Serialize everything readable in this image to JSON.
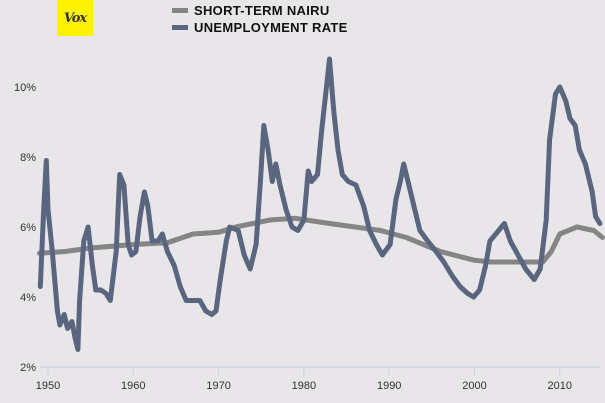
{
  "logo": "Vox",
  "chart_data": {
    "type": "line",
    "title": "",
    "xlabel": "",
    "ylabel": "",
    "xlim": [
      1948.9,
      2015
    ],
    "ylim": [
      2,
      11
    ],
    "x_ticks": [
      "1950",
      "1960",
      "1970",
      "1980",
      "1990",
      "2000",
      "2010"
    ],
    "y_ticks": [
      "2%",
      "4%",
      "6%",
      "8%",
      "10%"
    ],
    "grid": false,
    "legend": "top-center",
    "series": [
      {
        "name": "SHORT-TERM NAIRU",
        "color": "#858585",
        "x": [
          1949,
          1952,
          1955,
          1960,
          1964,
          1967,
          1970,
          1972,
          1976,
          1979,
          1983,
          1989,
          1992,
          1996,
          2000,
          2002,
          2008,
          2009,
          2010,
          2012,
          2014,
          2015
        ],
        "y": [
          5.25,
          5.3,
          5.4,
          5.5,
          5.55,
          5.8,
          5.85,
          6.0,
          6.2,
          6.25,
          6.1,
          5.9,
          5.7,
          5.3,
          5.05,
          5.0,
          5.0,
          5.3,
          5.8,
          6.0,
          5.9,
          5.7
        ]
      },
      {
        "name": "UNEMPLOYMENT RATE",
        "color": "#5a6680",
        "x": [
          1949.1,
          1949.5,
          1949.8,
          1950,
          1950.5,
          1951.1,
          1951.4,
          1951.9,
          1952.3,
          1952.8,
          1953.2,
          1953.5,
          1953.7,
          1954.2,
          1954.7,
          1955.2,
          1955.6,
          1956.2,
          1956.8,
          1957.3,
          1958,
          1958.4,
          1958.9,
          1959.4,
          1959.8,
          1960.3,
          1960.8,
          1961.3,
          1961.7,
          1962.2,
          1962.9,
          1963.4,
          1964,
          1964.8,
          1965.5,
          1966.2,
          1967.1,
          1967.8,
          1968.5,
          1969.2,
          1969.7,
          1970.2,
          1970.9,
          1971.3,
          1972.3,
          1973,
          1973.7,
          1974.4,
          1974.9,
          1975.3,
          1975.8,
          1976.3,
          1976.7,
          1977.2,
          1977.9,
          1978.6,
          1979.3,
          1980,
          1980.5,
          1980.9,
          1981.6,
          1982.1,
          1982.6,
          1983,
          1983.5,
          1984,
          1984.5,
          1985.2,
          1986.1,
          1987,
          1987.7,
          1988.5,
          1989.2,
          1990.1,
          1990.8,
          1991.3,
          1991.7,
          1992.2,
          1992.9,
          1993.6,
          1994.5,
          1995.5,
          1996.4,
          1997.4,
          1998.3,
          1999.2,
          1999.9,
          2000.6,
          2001.3,
          2001.8,
          2002.5,
          2003.5,
          2004.2,
          2005.1,
          2006,
          2007,
          2007.7,
          2008.4,
          2008.8,
          2009.5,
          2010,
          2010.7,
          2011.2,
          2011.8,
          2012.3,
          2013,
          2013.8,
          2014.2,
          2014.7
        ],
        "y": [
          4.3,
          6.5,
          7.9,
          6.5,
          5.3,
          3.6,
          3.2,
          3.5,
          3.1,
          3.3,
          2.8,
          2.5,
          3.9,
          5.6,
          6.0,
          4.9,
          4.2,
          4.2,
          4.1,
          3.9,
          5.3,
          7.5,
          7.2,
          5.5,
          5.2,
          5.3,
          6.3,
          7.0,
          6.6,
          5.6,
          5.6,
          5.8,
          5.3,
          4.9,
          4.3,
          3.9,
          3.9,
          3.9,
          3.6,
          3.5,
          3.6,
          4.5,
          5.6,
          6.0,
          5.9,
          5.2,
          4.8,
          5.5,
          7.3,
          8.9,
          8.2,
          7.3,
          7.8,
          7.2,
          6.5,
          6.0,
          5.9,
          6.2,
          7.6,
          7.3,
          7.5,
          8.8,
          9.9,
          10.8,
          9.3,
          8.2,
          7.5,
          7.3,
          7.2,
          6.6,
          5.9,
          5.5,
          5.2,
          5.5,
          6.8,
          7.3,
          7.8,
          7.3,
          6.6,
          5.9,
          5.6,
          5.3,
          5.0,
          4.6,
          4.3,
          4.1,
          4.0,
          4.2,
          4.9,
          5.6,
          5.8,
          6.1,
          5.6,
          5.2,
          4.8,
          4.5,
          4.8,
          6.2,
          8.5,
          9.8,
          10.0,
          9.6,
          9.1,
          8.9,
          8.2,
          7.8,
          7.0,
          6.3,
          6.1
        ]
      }
    ]
  }
}
